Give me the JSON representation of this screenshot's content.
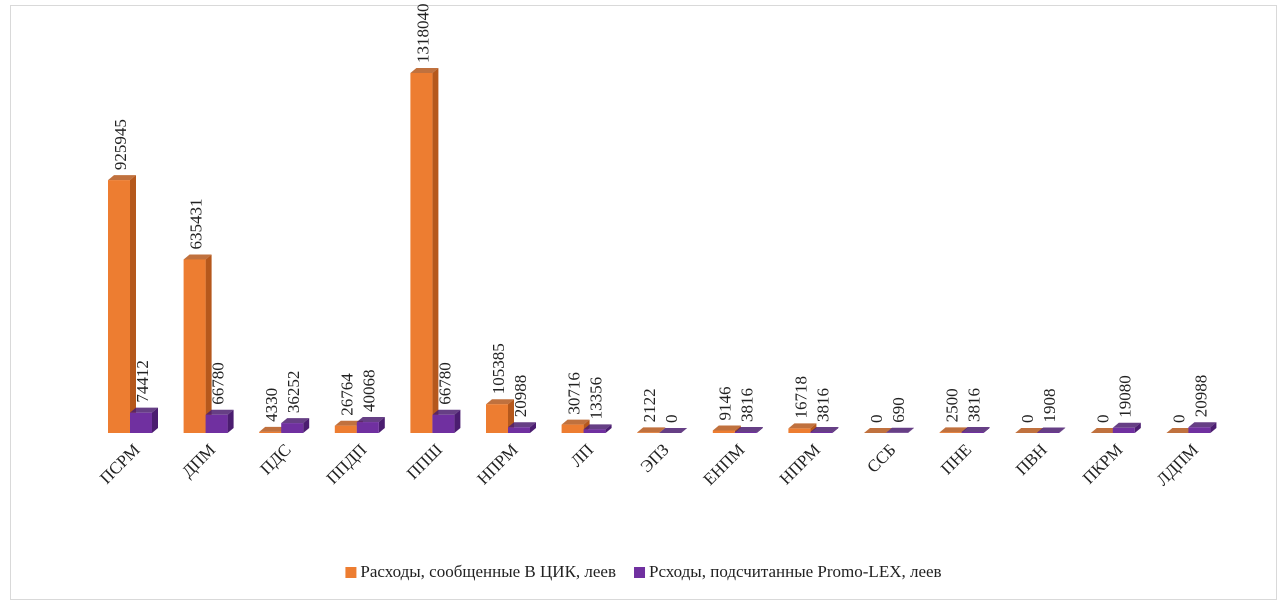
{
  "chart_data": {
    "type": "bar3d",
    "categories": [
      "ПСРМ",
      "ДПМ",
      "ПДС",
      "ППДП",
      "ППШ",
      "НПРМ",
      "ЛП",
      "ЭПЗ",
      "ЕНПМ",
      "НПРМ",
      "ССБ",
      "ПНЕ",
      "ПВН",
      "ПКРМ",
      "ЛДПМ"
    ],
    "series": [
      {
        "name": "Расходы, сообщенные В ЦИК, леев",
        "color": "#ed7d31",
        "side": "#b5581c",
        "values": [
          925945,
          635431,
          4330,
          26764,
          1318040,
          105385,
          30716,
          2122,
          9146,
          16718,
          0,
          2500,
          0,
          0,
          0
        ]
      },
      {
        "name": "Рсходы, подсчитанные Promo-LEX, леев",
        "color": "#7030a0",
        "side": "#4b1d70",
        "values": [
          74412,
          66780,
          36252,
          40068,
          66780,
          20988,
          13356,
          0,
          3816,
          3816,
          690,
          3816,
          1908,
          19080,
          20988
        ]
      }
    ],
    "legend": "bottom"
  }
}
